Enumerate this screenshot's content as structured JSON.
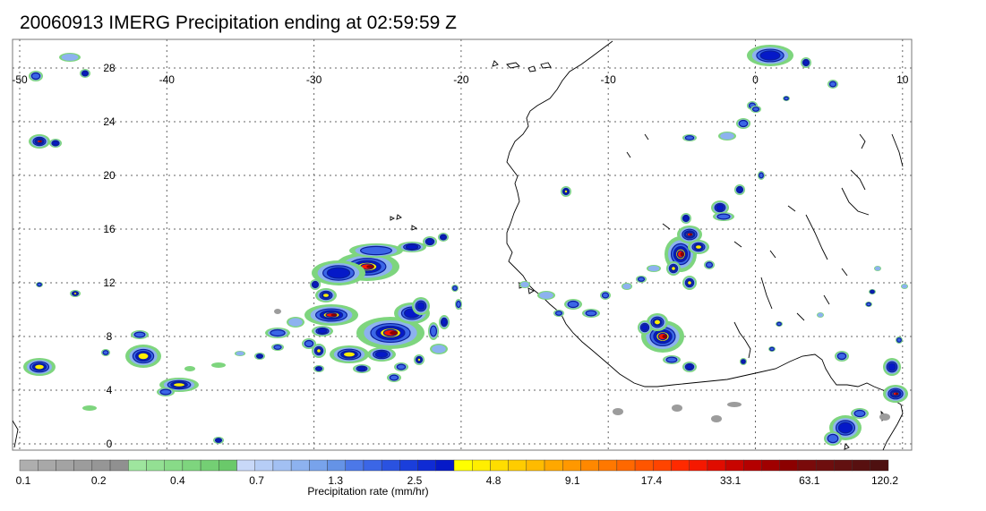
{
  "title": "20060913 IMERG Precipitation ending at 02:59:59 Z",
  "map": {
    "lon_range": [
      -50,
      10
    ],
    "lat_range": [
      -1,
      31
    ],
    "lon_ticks": [
      "-50",
      "-40",
      "-30",
      "-20",
      "-10",
      "0",
      "10"
    ],
    "lat_ticks": [
      "28",
      "24",
      "20",
      "16",
      "12",
      "8",
      "4",
      "0"
    ],
    "gridlines": true,
    "coastline_color": "#000000"
  },
  "colorbar": {
    "title": "Precipitation rate (mm/hr)",
    "labels": [
      "0.1",
      "0.2",
      "0.4",
      "0.7",
      "1.3",
      "2.5",
      "4.8",
      "9.1",
      "17.4",
      "33.1",
      "63.1",
      "120.2"
    ],
    "colors": [
      "#aeaeae",
      "#a8a8a8",
      "#a3a3a3",
      "#9c9c9c",
      "#969696",
      "#909090",
      "#9ee59e",
      "#93e093",
      "#88db88",
      "#7ed57e",
      "#74cf74",
      "#6ac96a",
      "#c8d8f8",
      "#b6cdf6",
      "#a2c0f3",
      "#8db2ef",
      "#78a3eb",
      "#6593e6",
      "#4c78e8",
      "#3b66e6",
      "#2a52e0",
      "#1a3edb",
      "#0f2bd4",
      "#0519c8",
      "#ffff00",
      "#ffee00",
      "#ffdd00",
      "#ffcc00",
      "#ffbb00",
      "#ffa800",
      "#ff9800",
      "#ff8800",
      "#ff7800",
      "#ff6800",
      "#ff5500",
      "#ff4400",
      "#ff2a00",
      "#f51800",
      "#e00c00",
      "#c80400",
      "#b40000",
      "#a00000",
      "#8c0000",
      "#7a0a0a",
      "#6e0e0e",
      "#621010",
      "#581010",
      "#4e1010"
    ]
  }
}
